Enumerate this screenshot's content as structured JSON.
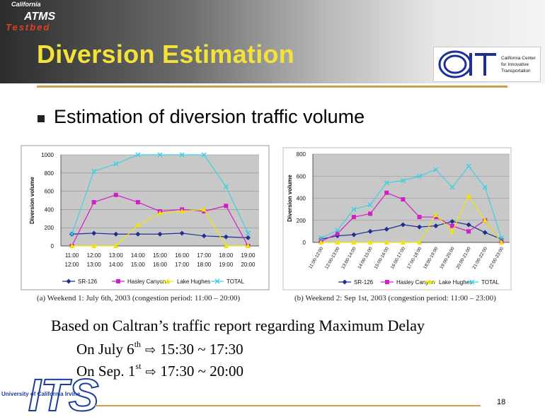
{
  "slide": {
    "title": "Diversion Estimation",
    "bullet": "Estimation of diversion traffic volume",
    "logo_left_top": "California",
    "logo_left_mid": "ATMS",
    "logo_left_bottom": "Testbed",
    "logo_right_lines": [
      "California Center",
      "for Innovative",
      "Transportation"
    ],
    "note_heading": "Based on Caltran’s traffic report regarding Maximum Delay",
    "note_lines": [
      {
        "date": "On July 6",
        "sup": "th",
        "range": "15:30 ~ 17:30"
      },
      {
        "date": "On Sep. 1",
        "sup": "st",
        "range": "17:30 ~ 20:00"
      }
    ],
    "its_text": "ITS",
    "its_sub": "University of California Irvine",
    "page_number": "18"
  },
  "chart_data": [
    {
      "type": "line",
      "title": "",
      "caption": "(a) Weekend 1: July 6th, 2003 (congestion period: 11:00 – 20:00)",
      "ylabel": "Diversion volume",
      "xlabel": "",
      "ylim": [
        0,
        1000
      ],
      "yticks": [
        0,
        200,
        400,
        600,
        800,
        1000
      ],
      "categories_top": [
        "11:00",
        "12:00",
        "13:00",
        "14:00",
        "15:00",
        "16:00",
        "17:00",
        "18:00",
        "19:00"
      ],
      "categories_bottom": [
        "12:00",
        "13:00",
        "14:00",
        "15:00",
        "16:00",
        "17:00",
        "18:00",
        "19:00",
        "20:00"
      ],
      "series": [
        {
          "name": "SR-126",
          "color": "#1f2f8f",
          "marker": "diamond",
          "values": [
            130,
            140,
            130,
            130,
            130,
            140,
            110,
            100,
            90
          ]
        },
        {
          "name": "Hasley Canyon",
          "color": "#d21ec8",
          "marker": "square",
          "values": [
            0,
            480,
            560,
            480,
            380,
            400,
            380,
            440,
            0
          ]
        },
        {
          "name": "Lake Hughes",
          "color": "#f2e600",
          "marker": "triangle",
          "values": [
            0,
            0,
            0,
            230,
            360,
            380,
            400,
            0,
            0
          ]
        },
        {
          "name": "TOTAL",
          "color": "#3fd0e0",
          "marker": "x",
          "values": [
            130,
            820,
            900,
            1000,
            1000,
            1000,
            1000,
            650,
            140
          ]
        }
      ],
      "legend": "bottom"
    },
    {
      "type": "line",
      "title": "",
      "caption": "(b) Weekend 2: Sep 1st, 2003 (congestion period: 11:00 – 23:00)",
      "ylabel": "Diversion volume",
      "xlabel": "",
      "ylim": [
        0,
        800
      ],
      "yticks": [
        0,
        200,
        400,
        600,
        800
      ],
      "categories": [
        "11:00-12:00",
        "12:00-13:00",
        "13:00-14:00",
        "14:00-15:00",
        "15:00-16:00",
        "16:00-17:00",
        "17:00-18:00",
        "18:00-19:00",
        "19:00-20:00",
        "20:00-21:00",
        "21:00-22:00",
        "22:00-23:00"
      ],
      "series": [
        {
          "name": "SR-126",
          "color": "#1f2f8f",
          "marker": "diamond",
          "values": [
            30,
            60,
            70,
            100,
            120,
            160,
            140,
            150,
            190,
            160,
            90,
            30
          ]
        },
        {
          "name": "Hasley Canyon",
          "color": "#d21ec8",
          "marker": "square",
          "values": [
            10,
            80,
            230,
            260,
            450,
            390,
            230,
            230,
            150,
            100,
            200,
            0
          ]
        },
        {
          "name": "Lake Hughes",
          "color": "#f2e600",
          "marker": "triangle",
          "values": [
            0,
            0,
            0,
            0,
            0,
            0,
            0,
            250,
            100,
            420,
            200,
            0
          ]
        },
        {
          "name": "TOTAL",
          "color": "#3fd0e0",
          "marker": "x",
          "values": [
            40,
            110,
            300,
            340,
            540,
            560,
            600,
            660,
            500,
            690,
            500,
            40
          ]
        }
      ],
      "legend": "bottom"
    }
  ]
}
